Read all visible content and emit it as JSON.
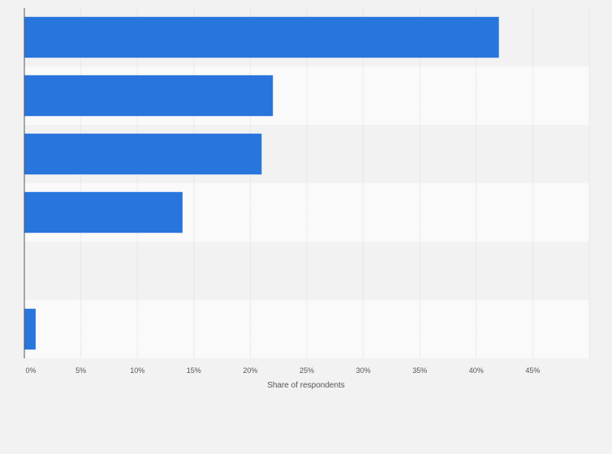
{
  "chart_data": {
    "type": "bar",
    "orientation": "horizontal",
    "categories": [
      "",
      "",
      "",
      "",
      "",
      ""
    ],
    "values": [
      42,
      22,
      21,
      14,
      0,
      1
    ],
    "xlabel": "Share of respondents",
    "ylabel": "",
    "xlim": [
      0,
      50
    ],
    "xticks": [
      "0%",
      "5%",
      "10%",
      "15%",
      "20%",
      "25%",
      "30%",
      "35%",
      "40%",
      "45%"
    ],
    "grid": true,
    "colors": {
      "bar": "#2875dd",
      "band_even": "#f2f2f2",
      "band_odd": "#fafafa",
      "grid": "#dcdcdc",
      "axis": "#555555"
    }
  }
}
